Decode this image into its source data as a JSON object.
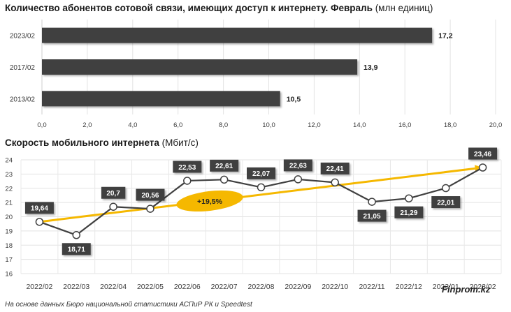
{
  "chart_data": [
    {
      "type": "bar",
      "orientation": "horizontal",
      "title": "Количество абонентов сотовой связи, имеющих доступ к интернету. Февраль",
      "title_suffix": "(млн единиц)",
      "categories": [
        "2023/02",
        "2017/02",
        "2013/02"
      ],
      "values": [
        17.2,
        13.9,
        10.5
      ],
      "value_labels": [
        "17,2",
        "13,9",
        "10,5"
      ],
      "xlim": [
        0,
        20
      ],
      "x_ticks": [
        "0,0",
        "2,0",
        "4,0",
        "6,0",
        "8,0",
        "10,0",
        "12,0",
        "14,0",
        "16,0",
        "18,0",
        "20,0"
      ],
      "grid": true,
      "bar_color": "#404040"
    },
    {
      "type": "line",
      "title": "Скорость мобильного интернета",
      "title_suffix": "(Мбит/с)",
      "x": [
        "2022/02",
        "2022/03",
        "2022/04",
        "2022/05",
        "2022/06",
        "2022/07",
        "2022/08",
        "2022/09",
        "2022/10",
        "2022/11",
        "2022/12",
        "2023/01",
        "2023/02"
      ],
      "values": [
        19.64,
        18.71,
        20.7,
        20.56,
        22.53,
        22.61,
        22.07,
        22.63,
        22.41,
        21.05,
        21.29,
        22.01,
        23.46
      ],
      "value_labels": [
        "19,64",
        "18,71",
        "20,7",
        "20,56",
        "22,53",
        "22,61",
        "22,07",
        "22,63",
        "22,41",
        "21,05",
        "21,29",
        "22,01",
        "23,46"
      ],
      "label_positions": [
        "above",
        "below",
        "above",
        "above",
        "above",
        "above",
        "above",
        "above",
        "above",
        "below",
        "below",
        "below",
        "above"
      ],
      "ylim": [
        16,
        24
      ],
      "y_ticks": [
        "16",
        "17",
        "18",
        "19",
        "20",
        "21",
        "22",
        "23",
        "24"
      ],
      "grid": true,
      "line_color": "#404040",
      "trend": {
        "from_value": 19.64,
        "to_value": 23.46,
        "label": "+19,5%",
        "color": "#f5b800"
      }
    }
  ],
  "footer": {
    "source": "На основе данных Бюро национальной статистики АСПиР РК и Speedtest",
    "brand": "Finprom.kz"
  }
}
